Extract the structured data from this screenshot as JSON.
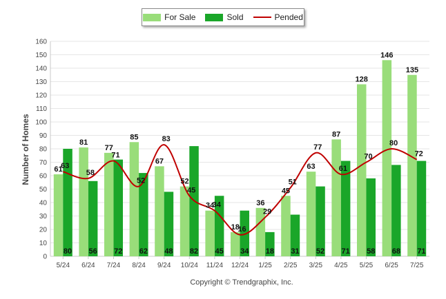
{
  "chart_data": {
    "type": "bar",
    "ylabel": "Number of Homes",
    "xlabel": "",
    "ylim": [
      0,
      160
    ],
    "yticks": [
      0,
      10,
      20,
      30,
      40,
      50,
      60,
      70,
      80,
      90,
      100,
      110,
      120,
      130,
      140,
      150,
      160
    ],
    "grid": true,
    "legend_position": "top",
    "categories": [
      "5/24",
      "6/24",
      "7/24",
      "8/24",
      "9/24",
      "10/24",
      "11/24",
      "12/24",
      "1/25",
      "2/25",
      "3/25",
      "4/25",
      "5/25",
      "6/25",
      "7/25"
    ],
    "series": [
      {
        "name": "For Sale",
        "type": "bar",
        "color": "#99dd7a",
        "values": [
          61,
          81,
          77,
          85,
          67,
          52,
          34,
          18,
          36,
          45,
          63,
          87,
          128,
          146,
          135
        ]
      },
      {
        "name": "Sold",
        "type": "bar",
        "color": "#1aa629",
        "values": [
          80,
          56,
          72,
          62,
          48,
          82,
          45,
          34,
          18,
          31,
          52,
          71,
          58,
          68,
          71
        ]
      },
      {
        "name": "Pended",
        "type": "line",
        "color": "#c00000",
        "values": [
          63,
          58,
          71,
          52,
          83,
          45,
          34,
          16,
          29,
          51,
          77,
          61,
          70,
          80,
          72
        ]
      }
    ]
  },
  "copyright": "Copyright © Trendgraphix, Inc."
}
